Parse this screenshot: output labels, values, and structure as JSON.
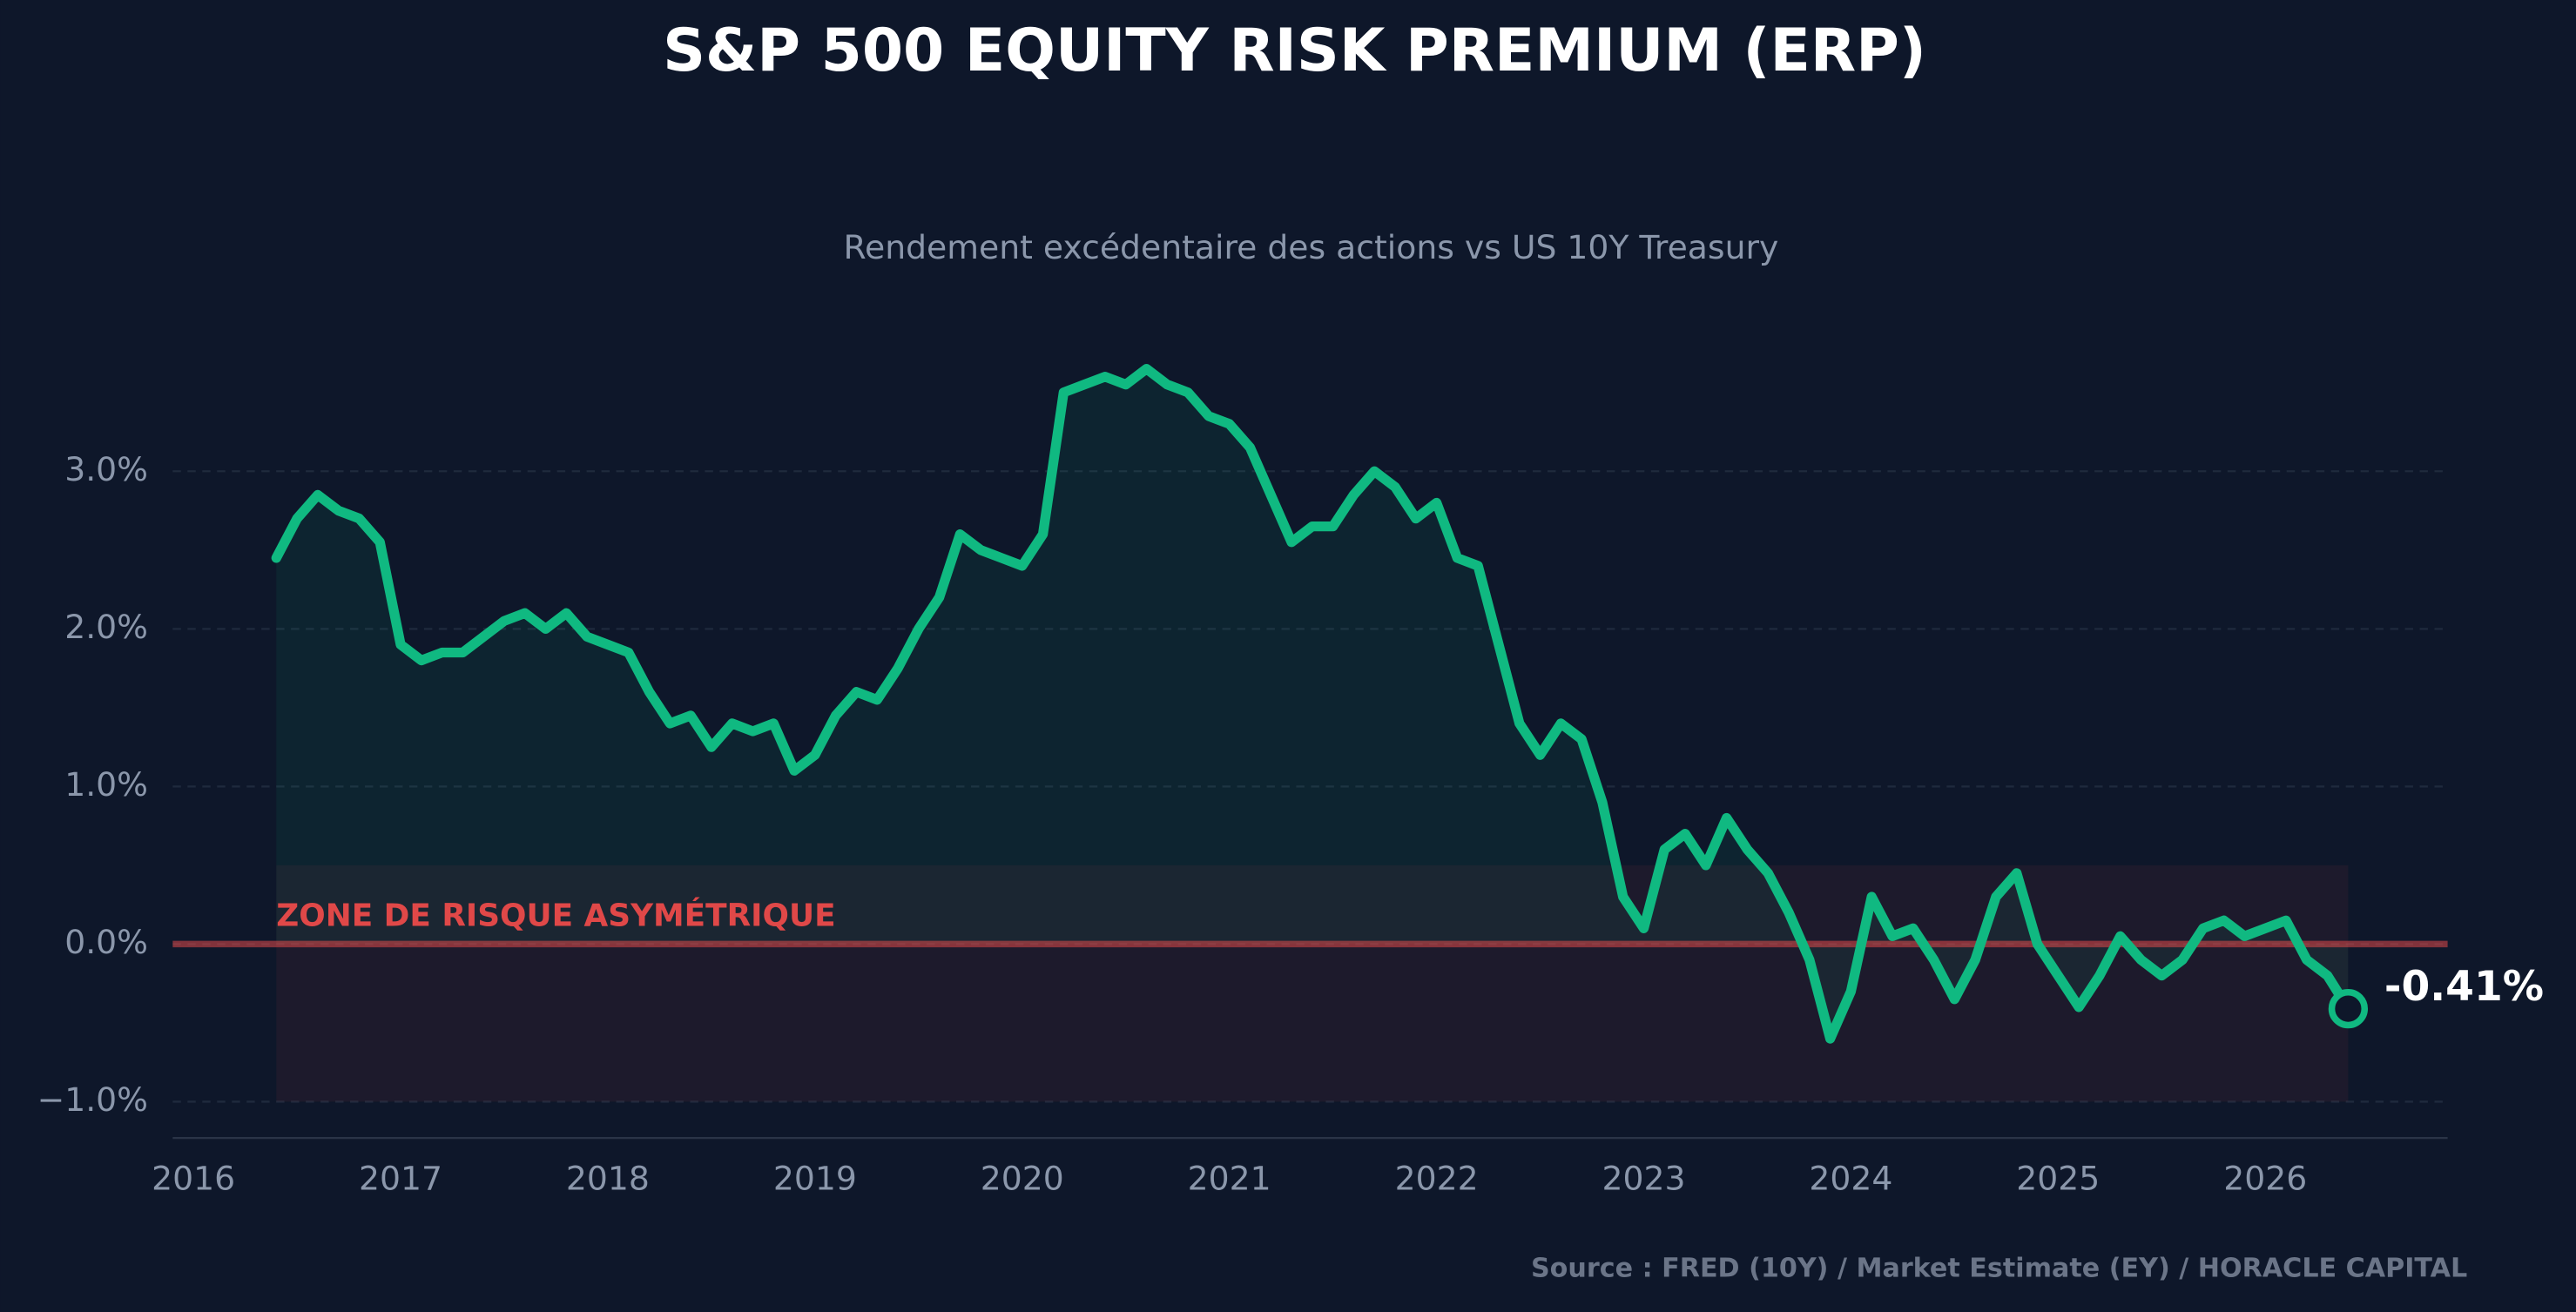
{
  "chart_data": {
    "type": "line",
    "title": "S&P 500 EQUITY RISK PREMIUM (ERP)",
    "subtitle": "Rendement excédentaire des actions vs US 10Y Treasury",
    "source": "Source : FRED (10Y) / Market Estimate (EY) / HORACLE CAPITAL",
    "x": [
      2016.4,
      2016.5,
      2016.6,
      2016.7,
      2016.8,
      2016.9,
      2017.0,
      2017.1,
      2017.2,
      2017.3,
      2017.4,
      2017.5,
      2017.6,
      2017.7,
      2017.8,
      2017.9,
      2018.0,
      2018.1,
      2018.2,
      2018.3,
      2018.4,
      2018.5,
      2018.6,
      2018.7,
      2018.8,
      2018.9,
      2019.0,
      2019.1,
      2019.2,
      2019.3,
      2019.4,
      2019.5,
      2019.6,
      2019.7,
      2019.8,
      2019.9,
      2020.0,
      2020.1,
      2020.2,
      2020.3,
      2020.4,
      2020.5,
      2020.6,
      2020.7,
      2020.8,
      2020.9,
      2021.0,
      2021.1,
      2021.2,
      2021.3,
      2021.4,
      2021.5,
      2021.6,
      2021.7,
      2021.8,
      2021.9,
      2022.0,
      2022.1,
      2022.2,
      2022.3,
      2022.4,
      2022.5,
      2022.6,
      2022.7,
      2022.8,
      2022.9,
      2023.0,
      2023.1,
      2023.2,
      2023.3,
      2023.4,
      2023.5,
      2023.6,
      2023.7,
      2023.8,
      2023.9,
      2024.0,
      2024.1,
      2024.2,
      2024.3,
      2024.4,
      2024.5,
      2024.6,
      2024.7,
      2024.8,
      2024.9,
      2025.0,
      2025.1,
      2025.2,
      2025.3,
      2025.4,
      2025.5,
      2025.6,
      2025.7,
      2025.8,
      2025.9,
      2026.0,
      2026.1,
      2026.2,
      2026.3,
      2026.4
    ],
    "series": [
      {
        "name": "ERP",
        "color": "#10b981",
        "values": [
          2.45,
          2.7,
          2.85,
          2.75,
          2.7,
          2.55,
          1.9,
          1.8,
          1.85,
          1.85,
          1.95,
          2.05,
          2.1,
          2.0,
          2.1,
          1.95,
          1.9,
          1.85,
          1.6,
          1.4,
          1.45,
          1.25,
          1.4,
          1.35,
          1.4,
          1.1,
          1.2,
          1.45,
          1.6,
          1.55,
          1.75,
          2.0,
          2.2,
          2.6,
          2.5,
          2.45,
          2.4,
          2.6,
          3.5,
          3.55,
          3.6,
          3.55,
          3.65,
          3.55,
          3.5,
          3.35,
          3.3,
          3.15,
          2.85,
          2.55,
          2.65,
          2.65,
          2.85,
          3.0,
          2.9,
          2.7,
          2.8,
          2.45,
          2.4,
          1.9,
          1.4,
          1.2,
          1.4,
          1.3,
          0.9,
          0.3,
          0.1,
          0.6,
          0.7,
          0.5,
          0.8,
          0.6,
          0.45,
          0.2,
          -0.1,
          -0.6,
          -0.3,
          0.3,
          0.05,
          0.1,
          -0.1,
          -0.35,
          -0.1,
          0.3,
          0.45,
          0.0,
          -0.2,
          -0.4,
          -0.2,
          0.05,
          -0.1,
          -0.2,
          -0.1,
          0.1,
          0.15,
          0.05,
          0.1,
          0.15,
          -0.1,
          -0.2,
          -0.41
        ]
      }
    ],
    "last_value_label": "-0.41%",
    "xlim": [
      2015.9,
      2026.88
    ],
    "xticks": [
      2016,
      2017,
      2018,
      2019,
      2020,
      2021,
      2022,
      2023,
      2024,
      2025,
      2026
    ],
    "ylim": [
      -1.23,
      3.9
    ],
    "yticks": [
      {
        "value": -1,
        "label": "−1.0%"
      },
      {
        "value": 0,
        "label": "0.0%"
      },
      {
        "value": 1,
        "label": "1.0%"
      },
      {
        "value": 2,
        "label": "2.0%"
      },
      {
        "value": 3,
        "label": "3.0%"
      }
    ],
    "grid": true,
    "reference_line": 0,
    "zone": {
      "label": "ZONE DE RISQUE ASYMÉTRIQUE",
      "range": [
        -1,
        0.5
      ],
      "color": "#e04848"
    }
  }
}
